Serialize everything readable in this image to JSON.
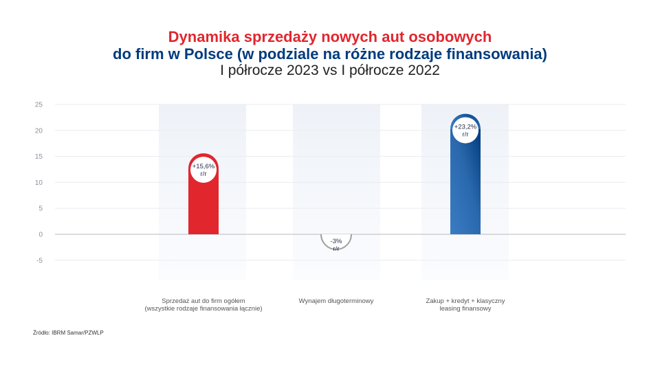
{
  "title": {
    "line1": "Dynamika sprzedaży nowych aut osobowych",
    "line2": "do firm w Polsce (w podziale na różne rodzaje finansowania)",
    "line3": "I półrocze 2023 vs I półrocze 2022"
  },
  "source": "Źródło: IBRM Samar/PZWLP",
  "colors": {
    "red": "#e1262d",
    "navy": "#003b7e",
    "blue": "#3a7cc4",
    "negative": "#a0a0a0"
  },
  "chart_data": {
    "type": "bar",
    "categories": [
      [
        "Sprzedaż aut do firm ogółem",
        "(wszystkie rodzaje finansowania łącznie)"
      ],
      [
        "Wynajem długoterminowy"
      ],
      [
        "Zakup + kredyt + klasyczny",
        "leasing finansowy"
      ]
    ],
    "values": [
      15.6,
      -3,
      23.2
    ],
    "data_labels": [
      [
        "+15,6%",
        "r/r"
      ],
      [
        "-3%",
        "r/r"
      ],
      [
        "+23,2%",
        "r/r"
      ]
    ],
    "ylim": [
      -5,
      25
    ],
    "yticks": [
      "25",
      "20",
      "15",
      "10",
      "5",
      "0",
      "-5"
    ],
    "grid": true,
    "legend": "none"
  }
}
